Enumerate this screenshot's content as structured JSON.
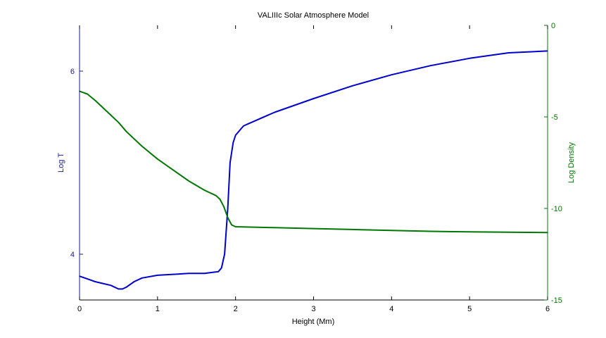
{
  "chart_data": {
    "type": "line",
    "title": "VALIIIc Solar Atmosphere Model",
    "xlabel": "Height (Mm)",
    "ylabel_left": "Log T",
    "ylabel_right": "Log Density",
    "xlim": [
      0,
      6
    ],
    "ylim_left": [
      3.5,
      6.5
    ],
    "ylim_right": [
      -15,
      0
    ],
    "x_ticks": [
      0,
      1,
      2,
      3,
      4,
      5,
      6
    ],
    "y_left_ticks": [
      4,
      6
    ],
    "y_right_ticks": [
      0,
      -5,
      -10,
      -15
    ],
    "grid": false,
    "series": [
      {
        "axis": "left",
        "color": "#0000cc",
        "x": [
          0,
          0.1,
          0.2,
          0.3,
          0.4,
          0.5,
          0.55,
          0.6,
          0.7,
          0.8,
          1.0,
          1.2,
          1.4,
          1.6,
          1.78,
          1.82,
          1.86,
          1.9,
          1.93,
          1.97,
          2.0,
          2.1,
          2.15,
          2.5,
          3.0,
          3.5,
          4.0,
          4.5,
          5.0,
          5.5,
          6.0
        ],
        "values": [
          3.76,
          3.73,
          3.7,
          3.68,
          3.66,
          3.62,
          3.62,
          3.64,
          3.7,
          3.74,
          3.77,
          3.78,
          3.79,
          3.79,
          3.81,
          3.85,
          4.0,
          4.5,
          5.0,
          5.22,
          5.3,
          5.4,
          5.42,
          5.55,
          5.7,
          5.84,
          5.96,
          6.06,
          6.14,
          6.2,
          6.22
        ]
      },
      {
        "axis": "right",
        "color": "#007700",
        "x": [
          0,
          0.1,
          0.2,
          0.3,
          0.4,
          0.5,
          0.6,
          0.8,
          1.0,
          1.2,
          1.4,
          1.6,
          1.75,
          1.8,
          1.85,
          1.9,
          1.95,
          2.0,
          2.5,
          3.0,
          3.5,
          4.0,
          4.5,
          5.0,
          5.5,
          6.0
        ],
        "values": [
          -3.6,
          -3.75,
          -4.1,
          -4.5,
          -4.9,
          -5.3,
          -5.8,
          -6.6,
          -7.3,
          -7.9,
          -8.5,
          -9.0,
          -9.3,
          -9.5,
          -9.9,
          -10.5,
          -10.9,
          -11.0,
          -11.05,
          -11.1,
          -11.15,
          -11.2,
          -11.25,
          -11.28,
          -11.3,
          -11.32
        ]
      }
    ]
  }
}
